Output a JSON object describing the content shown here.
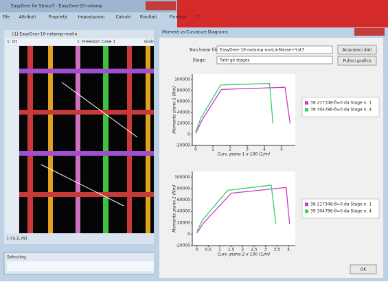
{
  "main_window": {
    "title": "EasyOver for Straus7 - EasyOver-10-notamp",
    "menu": [
      "File",
      "Attributi",
      "Proprietà",
      "Impostazioni",
      "Calcolo",
      "Risultati",
      "Finestra",
      "?"
    ]
  },
  "child_window": {
    "title": "[1] EasyOver-10-notamp-nonlin",
    "toolbar": [
      "1: Ot",
      "1: Freedom Case 1",
      "Glob"
    ],
    "status": "(-74,1,79)"
  },
  "selecting_toolbar": {
    "title": "Selecting"
  },
  "dialog": {
    "title": "Moment vs Curvature Diagrams",
    "fields": [
      {
        "label": "Non linear file:",
        "value": "EasyOver-10-notamp-nonLinMasse+Y.st7"
      },
      {
        "label": "Stage:",
        "value": "Tutti gli stages"
      }
    ],
    "buttons": [
      "Acquisisci dati",
      "Pulisci grafico",
      "OK"
    ]
  },
  "chart_data": [
    {
      "type": "line",
      "x_label": "Curv. piano 1 x 100 (1/m)",
      "y_label": "Momento piano 1 (Nm)",
      "xlim": [
        -0.2,
        5.8
      ],
      "ylim": [
        -20000,
        110000
      ],
      "xticks": [
        0,
        1,
        2,
        3,
        4,
        5
      ],
      "yticks": [
        -20000,
        0,
        20000,
        40000,
        60000,
        80000,
        100000
      ],
      "series": [
        {
          "name": "38 217348-θ=0 da Stage n. 1",
          "color": "#cc33cc",
          "x": [
            0,
            0.4,
            1.5,
            5.2,
            5.5
          ],
          "values": [
            2000,
            28000,
            82000,
            86000,
            20000
          ]
        },
        {
          "name": "39 304786-θ=0 da Stage n. 4",
          "color": "#33cc66",
          "x": [
            0,
            0.3,
            1.45,
            4.3,
            4.5
          ],
          "values": [
            5000,
            30000,
            90000,
            93000,
            20000
          ]
        }
      ]
    },
    {
      "type": "line",
      "x_label": "Curv. piano 2 x 100 (1/m)",
      "y_label": "Momento piano 2 (Nm)",
      "xlim": [
        -0.2,
        4.3
      ],
      "ylim": [
        -20000,
        110000
      ],
      "xticks": [
        0,
        {
          "value": 0.5,
          "label": "0,5"
        },
        1,
        {
          "value": 1.5,
          "label": "1,5"
        },
        2,
        {
          "value": 2.5,
          "label": "2,5"
        },
        3,
        {
          "value": 3.5,
          "label": "3,5"
        },
        4
      ],
      "yticks": [
        -20000,
        0,
        20000,
        40000,
        60000,
        80000,
        100000
      ],
      "series": [
        {
          "name": "38 217348-θ=0 da Stage n. 1",
          "color": "#cc33cc",
          "x": [
            0,
            0.3,
            1.5,
            3.9,
            4.05
          ],
          "values": [
            2000,
            20000,
            72000,
            82000,
            18000
          ]
        },
        {
          "name": "39 304786-θ=0 da Stage n. 4",
          "color": "#33cc66",
          "x": [
            0,
            0.25,
            1.35,
            3.25,
            3.45
          ],
          "values": [
            5000,
            25000,
            77000,
            86000,
            18000
          ]
        }
      ]
    }
  ]
}
